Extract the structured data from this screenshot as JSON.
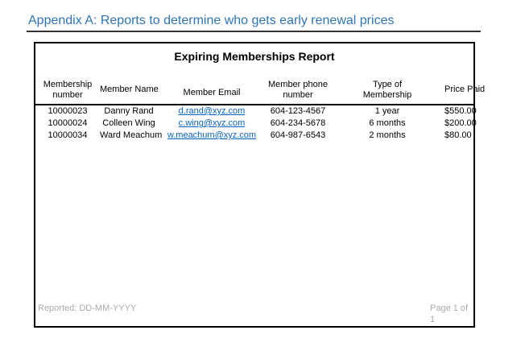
{
  "document": {
    "heading": "Appendix A: Reports to determine who gets early renewal prices"
  },
  "report": {
    "title": "Expiring Memberships Report",
    "columns": [
      {
        "id": "membership-number",
        "lines": [
          "Membership",
          "number"
        ]
      },
      {
        "id": "member-name",
        "lines": [
          "Member Name"
        ]
      },
      {
        "id": "member-email",
        "lines": [
          "Member Email"
        ]
      },
      {
        "id": "member-phone-number",
        "lines": [
          "Member phone",
          "number"
        ]
      },
      {
        "id": "type-of-membership",
        "lines": [
          "Type of",
          "Membership"
        ]
      },
      {
        "id": "price-paid",
        "lines": [
          "Price Paid"
        ]
      }
    ],
    "rows": [
      {
        "membership_number": "10000023",
        "member_name": "Danny Rand",
        "member_email": "d.rand@xyz.com",
        "member_phone": "604-123-4567",
        "membership_type": "1 year",
        "price_paid": "$550.00"
      },
      {
        "membership_number": "10000024",
        "member_name": "Colleen Wing",
        "member_email": "c.wing@xyz.com",
        "member_phone": "604-234-5678",
        "membership_type": "6 months",
        "price_paid": "$200.00"
      },
      {
        "membership_number": "10000034",
        "member_name": "Ward Meachum",
        "member_email": "w.meachum@xyz.com",
        "member_phone": "604-987-6543",
        "membership_type": "2 months",
        "price_paid": "$80.00"
      }
    ],
    "footer": {
      "reported": "Reported: DD-MM-YYYY",
      "page": "Page 1 of 1"
    }
  },
  "colors": {
    "heading_blue": "#2E74B5",
    "link_blue": "#0563C1",
    "footer_gray": "#ABABAB",
    "heading_rule": "#333333",
    "frame_border": "#000000"
  }
}
